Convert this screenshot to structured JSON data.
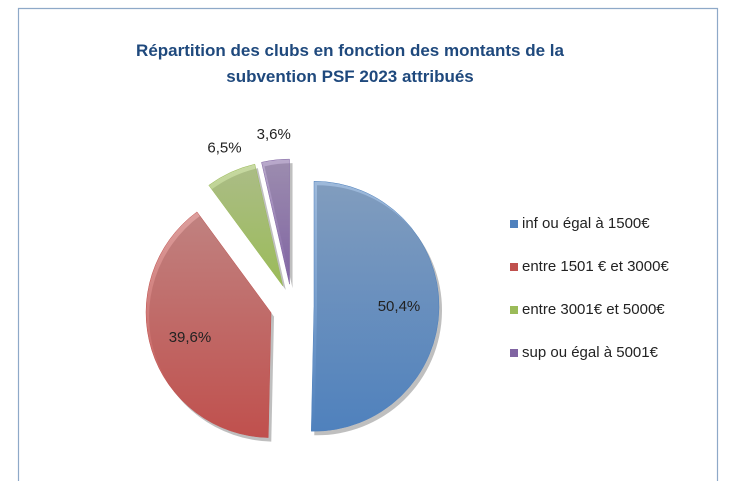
{
  "chart_data": {
    "type": "pie",
    "title": "Répartition des clubs en fonction des montants de la subvention PSF 2023 attribués",
    "categories": [
      "inf ou égal à 1500€",
      "entre 1501 € et 3000€",
      "entre 3001€ et 5000€",
      "sup ou égal à 5001€"
    ],
    "values": [
      50.4,
      39.6,
      6.5,
      3.6
    ],
    "value_labels": [
      "50,4%",
      "39,6%",
      "6,5%",
      "3,6%"
    ],
    "colors": [
      "#4f81bd",
      "#c0504d",
      "#9bbb59",
      "#8064a2"
    ],
    "legend": "right"
  }
}
